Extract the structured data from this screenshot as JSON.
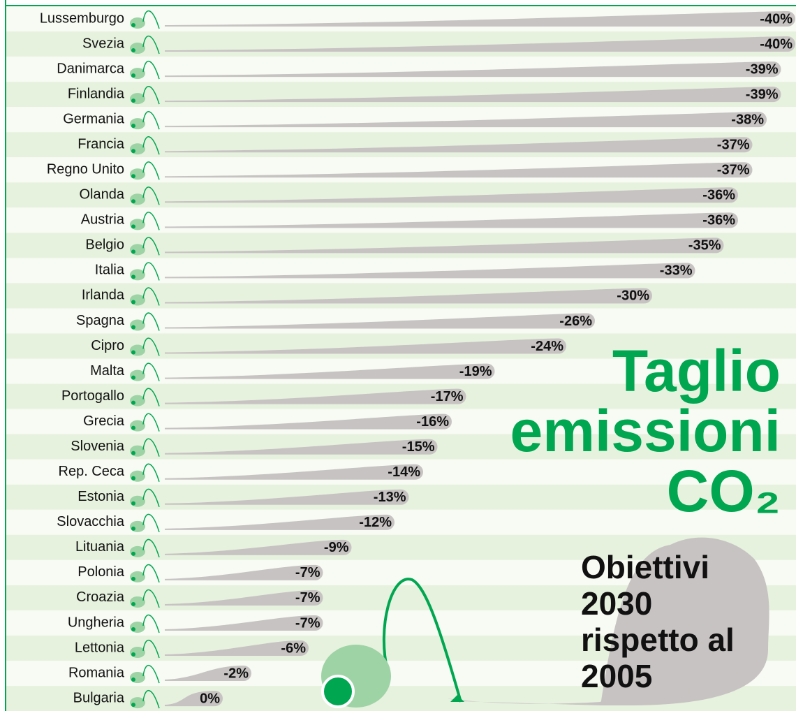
{
  "chart_data": {
    "type": "bar",
    "orientation": "horizontal",
    "title": "Taglio emissioni CO₂",
    "subtitle": "Obiettivi 2030 rispetto al 2005",
    "categories": [
      "Lussemburgo",
      "Svezia",
      "Danimarca",
      "Finlandia",
      "Germania",
      "Francia",
      "Regno Unito",
      "Olanda",
      "Austria",
      "Belgio",
      "Italia",
      "Irlanda",
      "Spagna",
      "Cipro",
      "Malta",
      "Portogallo",
      "Grecia",
      "Slovenia",
      "Rep. Ceca",
      "Estonia",
      "Slovacchia",
      "Lituania",
      "Polonia",
      "Croazia",
      "Ungheria",
      "Lettonia",
      "Romania",
      "Bulgaria"
    ],
    "values": [
      -40,
      -40,
      -39,
      -39,
      -38,
      -37,
      -37,
      -36,
      -36,
      -35,
      -33,
      -30,
      -26,
      -24,
      -19,
      -17,
      -16,
      -15,
      -14,
      -13,
      -12,
      -9,
      -7,
      -7,
      -7,
      -6,
      -2,
      0
    ],
    "value_labels": [
      "-40%",
      "-40%",
      "-39%",
      "-39%",
      "-38%",
      "-37%",
      "-37%",
      "-36%",
      "-36%",
      "-35%",
      "-33%",
      "-30%",
      "-26%",
      "-24%",
      "-19%",
      "-17%",
      "-16%",
      "-15%",
      "-14%",
      "-13%",
      "-12%",
      "-9%",
      "-7%",
      "-7%",
      "-7%",
      "-6%",
      "-2%",
      "0%"
    ],
    "xlim": [
      0,
      -40
    ],
    "color": "#c8c3c3",
    "title_color": "#00a650"
  }
}
